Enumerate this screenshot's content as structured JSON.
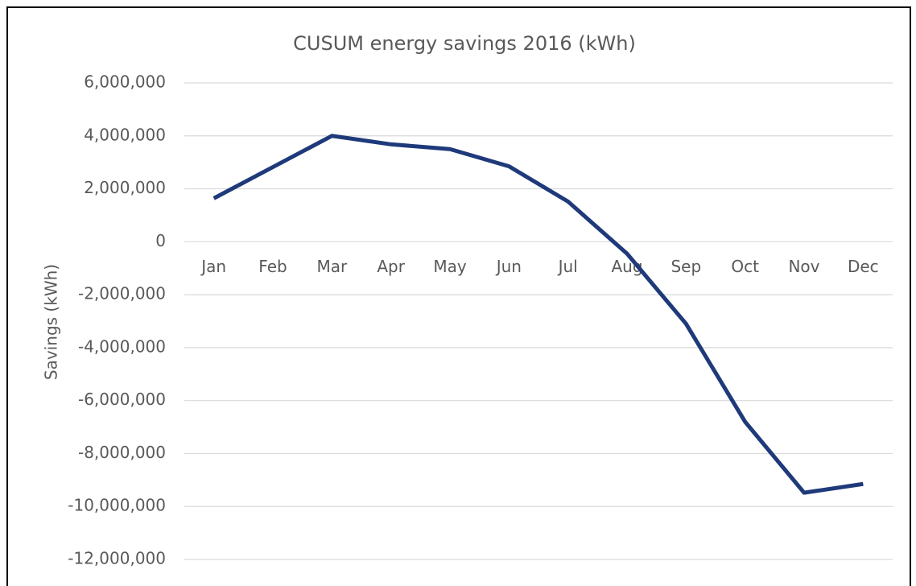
{
  "chart_data": {
    "type": "line",
    "title": "CUSUM energy savings 2016 (kWh)",
    "y_label": "Savings (kWh)",
    "categories": [
      "Jan",
      "Feb",
      "Mar",
      "Apr",
      "May",
      "Jun",
      "Jul",
      "Aug",
      "Sep",
      "Oct",
      "Nov",
      "Dec"
    ],
    "series": [
      {
        "name": "Savings",
        "color": "#1f3a7a",
        "values": [
          1640000,
          2820000,
          4000000,
          3680000,
          3500000,
          2850000,
          1520000,
          -450000,
          -3100000,
          -6800000,
          -9480000,
          -9150000
        ]
      }
    ],
    "ylim": [
      -12000000,
      6000000
    ],
    "yticks": [
      {
        "value": -12000000,
        "label": "-12,000,000"
      },
      {
        "value": -10000000,
        "label": "-10,000,000"
      },
      {
        "value": -8000000,
        "label": "-8,000,000"
      },
      {
        "value": -6000000,
        "label": "-6,000,000"
      },
      {
        "value": -4000000,
        "label": "-4,000,000"
      },
      {
        "value": -2000000,
        "label": "-2,000,000"
      },
      0,
      {
        "value": 2000000,
        "label": "2,000,000"
      },
      {
        "value": 4000000,
        "label": "4,000,000"
      },
      {
        "value": 6000000,
        "label": "6,000,000"
      }
    ],
    "grid": true
  }
}
